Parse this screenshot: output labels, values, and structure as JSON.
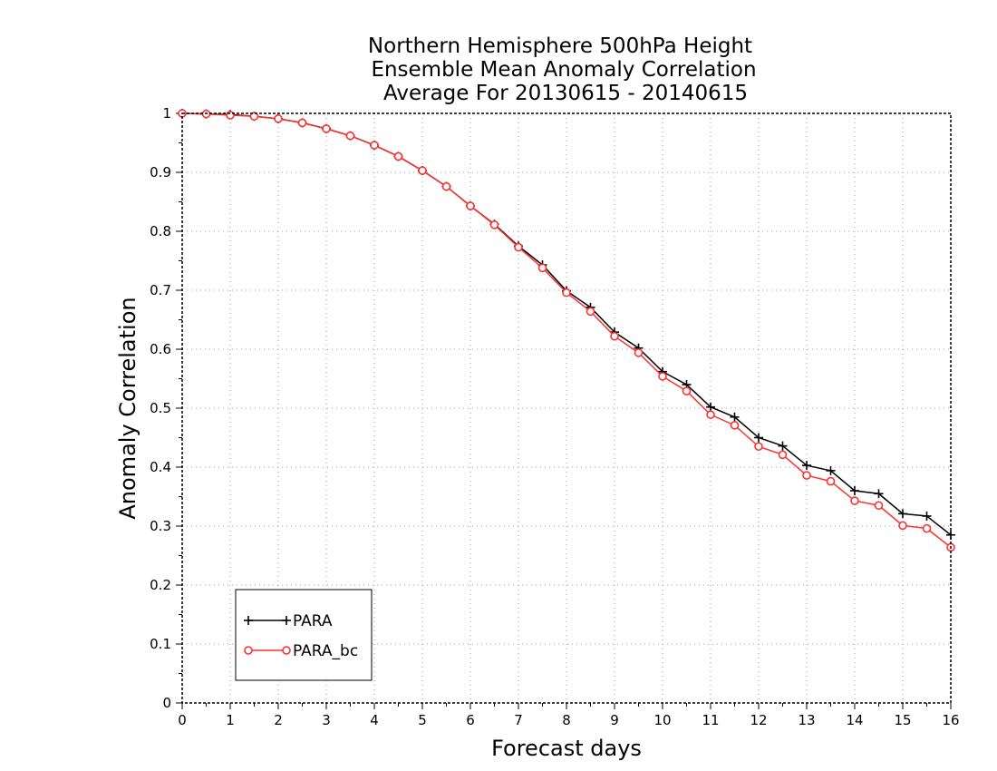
{
  "chart_data": {
    "type": "line",
    "title": [
      "Northern Hemisphere 500hPa Height",
      "Ensemble Mean Anomaly Correlation",
      "Average For 20130615 - 20140615"
    ],
    "xlabel": "Forecast days",
    "ylabel": "Anomaly Correlation",
    "xlim": [
      0,
      16
    ],
    "ylim": [
      0,
      1
    ],
    "x_ticks": [
      "0",
      "1",
      "2",
      "3",
      "4",
      "5",
      "6",
      "7",
      "8",
      "9",
      "10",
      "11",
      "12",
      "13",
      "14",
      "15",
      "16"
    ],
    "y_ticks": [
      "0",
      "0.1",
      "0.2",
      "0.3",
      "0.4",
      "0.5",
      "0.6",
      "0.7",
      "0.8",
      "0.9",
      "1"
    ],
    "grid": true,
    "legend_position": "bottom-left",
    "x": [
      0,
      0.5,
      1,
      1.5,
      2,
      2.5,
      3,
      3.5,
      4,
      4.5,
      5,
      5.5,
      6,
      6.5,
      7,
      7.5,
      8,
      8.5,
      9,
      9.5,
      10,
      10.5,
      11,
      11.5,
      12,
      12.5,
      13,
      13.5,
      14,
      14.5,
      15,
      15.5,
      16
    ],
    "series": [
      {
        "name": "PARA",
        "color": "#000000",
        "marker": "plus",
        "values": [
          1.0,
          0.999,
          0.998,
          0.995,
          0.991,
          0.984,
          0.974,
          0.962,
          0.946,
          0.927,
          0.903,
          0.876,
          0.843,
          0.812,
          0.775,
          0.743,
          0.699,
          0.671,
          0.629,
          0.602,
          0.562,
          0.54,
          0.502,
          0.485,
          0.45,
          0.436,
          0.403,
          0.394,
          0.36,
          0.355,
          0.321,
          0.317,
          0.285
        ]
      },
      {
        "name": "PARA_bc",
        "color": "#ff3030",
        "marker": "circle",
        "values": [
          1.0,
          0.999,
          0.997,
          0.995,
          0.991,
          0.984,
          0.974,
          0.962,
          0.946,
          0.927,
          0.903,
          0.876,
          0.843,
          0.811,
          0.773,
          0.738,
          0.696,
          0.664,
          0.622,
          0.594,
          0.554,
          0.529,
          0.489,
          0.471,
          0.435,
          0.421,
          0.386,
          0.376,
          0.343,
          0.335,
          0.301,
          0.296,
          0.264
        ]
      }
    ]
  }
}
